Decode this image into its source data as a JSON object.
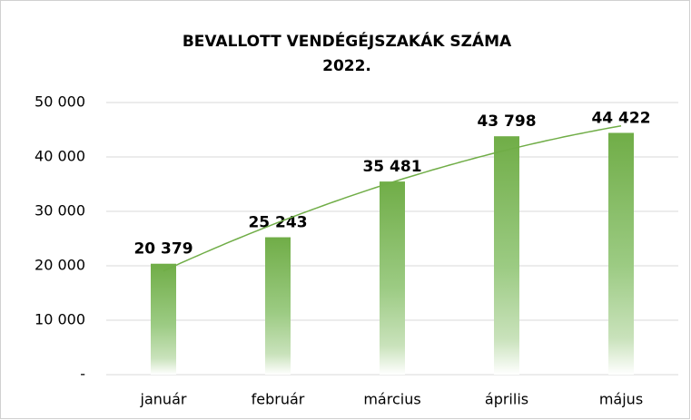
{
  "chart_data": {
    "type": "bar",
    "title": [
      "BEVALLOTT VENDÉGÉJSZAKÁK SZÁMA",
      "2022."
    ],
    "categories": [
      "január",
      "február",
      "március",
      "április",
      "május"
    ],
    "values": [
      20379,
      25243,
      35481,
      43798,
      44422
    ],
    "value_labels": [
      "20 379",
      "25 243",
      "35 481",
      "43 798",
      "44 422"
    ],
    "color": "#70ad47",
    "ylim": [
      0,
      50000
    ],
    "yticks": [
      {
        "value": 0,
        "label": "-"
      },
      {
        "value": 10000,
        "label": "10 000"
      },
      {
        "value": 20000,
        "label": "20 000"
      },
      {
        "value": 30000,
        "label": "30 000"
      },
      {
        "value": 40000,
        "label": "40 000"
      },
      {
        "value": 50000,
        "label": "50 000"
      }
    ],
    "grid": true,
    "trendline": {
      "type": "polynomial",
      "order": 2
    }
  }
}
